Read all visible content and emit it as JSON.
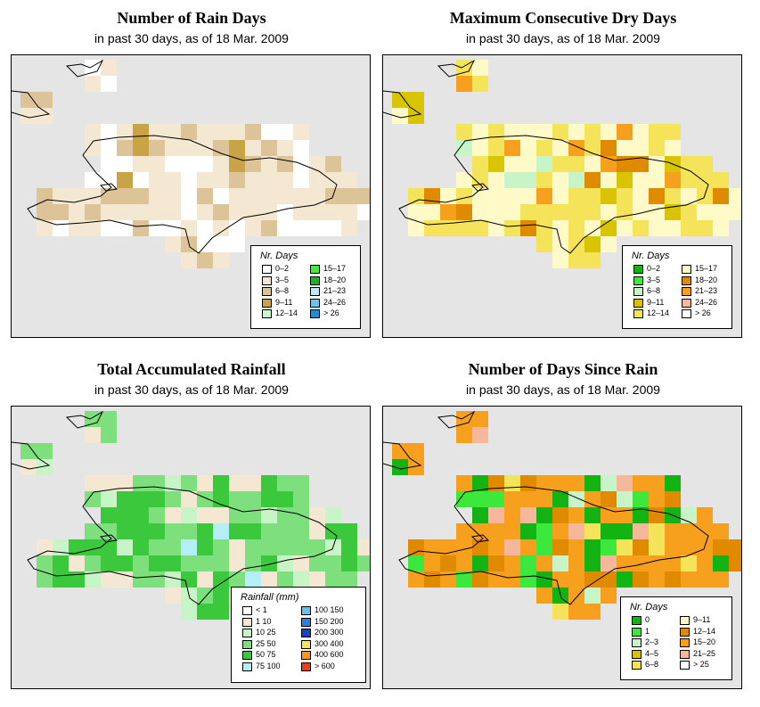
{
  "panels": [
    {
      "title": "Number of Rain Days",
      "subtitle": "in past 30 days, as of  18 Mar. 2009",
      "legend": {
        "title": "Nr. Days",
        "items": [
          {
            "label": "0–2",
            "color": "#ffffff"
          },
          {
            "label": "3–5",
            "color": "#f5e8d2"
          },
          {
            "label": "6–8",
            "color": "#dcc498"
          },
          {
            "label": "9–11",
            "color": "#c9a447"
          },
          {
            "label": "12–14",
            "color": "#ccf7c8"
          },
          {
            "label": "15–17",
            "color": "#3ef03e"
          },
          {
            "label": "18–20",
            "color": "#22b022"
          },
          {
            "label": "21–23",
            "color": "#bfe9f6"
          },
          {
            "label": "24–26",
            "color": "#6fc3ef"
          },
          {
            "label": "> 26",
            "color": "#1a8ed8"
          }
        ]
      }
    },
    {
      "title": "Maximum Consecutive Dry Days",
      "subtitle": "in past 30 days, as of  18 Mar. 2009",
      "legend": {
        "title": "Nr. Days",
        "items": [
          {
            "label": "0–2",
            "color": "#12b312"
          },
          {
            "label": "3–5",
            "color": "#3de83d"
          },
          {
            "label": "6–8",
            "color": "#c8f5c8"
          },
          {
            "label": "9–11",
            "color": "#d8c400"
          },
          {
            "label": "12–14",
            "color": "#f5e35a"
          },
          {
            "label": "15–17",
            "color": "#fffac8"
          },
          {
            "label": "18–20",
            "color": "#e08a00"
          },
          {
            "label": "21–23",
            "color": "#f7a01e"
          },
          {
            "label": "24–26",
            "color": "#f5b89a"
          },
          {
            "label": "> 26",
            "color": "#ffffff"
          }
        ]
      }
    },
    {
      "title": "Total Accumulated Rainfall",
      "subtitle": "in past 30 days, as of  18 Mar. 2009",
      "legend": {
        "title": "Rainfall (mm)",
        "items": [
          {
            "label": "< 1",
            "color": "#ffffff"
          },
          {
            "label": "1    10",
            "color": "#f5e8d2"
          },
          {
            "label": "10    25",
            "color": "#c8f5c8"
          },
          {
            "label": "25    50",
            "color": "#7de07d"
          },
          {
            "label": "50    75",
            "color": "#3cc83c"
          },
          {
            "label": "75   100",
            "color": "#b4eef6"
          },
          {
            "label": "100   150",
            "color": "#6fbcef"
          },
          {
            "label": "150   200",
            "color": "#2e7fe0"
          },
          {
            "label": "200   300",
            "color": "#1e3fc0"
          },
          {
            "label": "300   400",
            "color": "#f5e35a"
          },
          {
            "label": "400   600",
            "color": "#f59a1e"
          },
          {
            "label": "> 600",
            "color": "#f03c1e"
          }
        ]
      }
    },
    {
      "title": "Number of Days Since Rain",
      "subtitle": "in past 30 days, as of  18 Mar. 2009",
      "legend": {
        "title": "Nr. Days",
        "items": [
          {
            "label": "0",
            "color": "#12b312"
          },
          {
            "label": "1",
            "color": "#3de83d"
          },
          {
            "label": "2–3",
            "color": "#c8f5c8"
          },
          {
            "label": "4–5",
            "color": "#d8c400"
          },
          {
            "label": "6–8",
            "color": "#f5e35a"
          },
          {
            "label": "9–11",
            "color": "#fffac8"
          },
          {
            "label": "12–14",
            "color": "#e08a00"
          },
          {
            "label": "15–20",
            "color": "#f7a01e"
          },
          {
            "label": "21–25",
            "color": "#f5b89a"
          },
          {
            "label": "> 25",
            "color": "#ffffff"
          }
        ]
      }
    }
  ],
  "map_colors": {
    "background": "#e5e5e5",
    "outline": "#000000"
  }
}
